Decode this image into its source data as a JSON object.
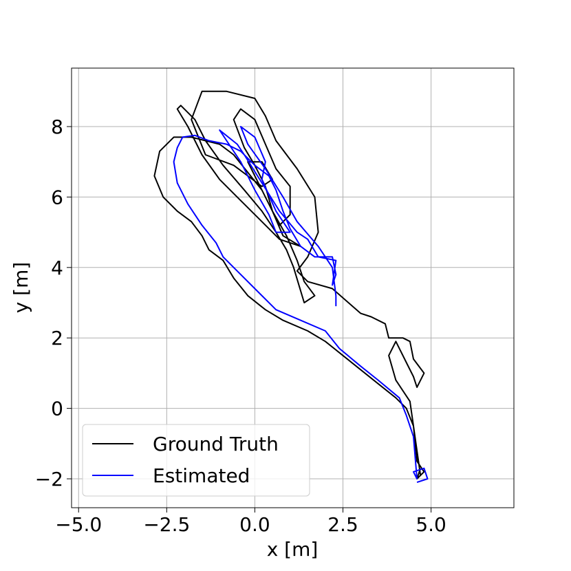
{
  "chart_data": {
    "type": "line",
    "xlabel": "x [m]",
    "ylabel": "y [m]",
    "xlim": [
      -5.2,
      7.35
    ],
    "ylim": [
      -2.82,
      9.66
    ],
    "xticks": [
      {
        "value": -5,
        "label": "−5.0"
      },
      {
        "value": -2.5,
        "label": "−2.5"
      },
      {
        "value": 0,
        "label": "0.0"
      },
      {
        "value": 2.5,
        "label": "2.5"
      },
      {
        "value": 5,
        "label": "5.0"
      }
    ],
    "yticks": [
      {
        "value": -2,
        "label": "−2"
      },
      0,
      2,
      4,
      6,
      8
    ],
    "grid": true,
    "legend": "lower left",
    "series": [
      {
        "name": "Ground Truth",
        "color": "#000000",
        "x": [
          4.7,
          4.6,
          4.5,
          4.3,
          4.0,
          3.5,
          3.0,
          2.5,
          2.0,
          1.5,
          0.8,
          0.3,
          -0.2,
          -0.6,
          -0.9,
          -1.3,
          -1.5,
          -1.8,
          -2.2,
          -2.6,
          -2.85,
          -2.7,
          -2.3,
          -1.8,
          -1.4,
          -1.0,
          -0.6,
          -0.2,
          0.2,
          0.5,
          0.9,
          1.2,
          1.4,
          1.7,
          1.4,
          1.25,
          1.1,
          0.9,
          0.6,
          0.2,
          -0.3,
          -0.9,
          -1.4,
          -1.7,
          -2.1,
          -2.2,
          -1.9,
          -1.5,
          -1.0,
          -0.5,
          0.2,
          0.7,
          1.3,
          0.8,
          0.5,
          0.3,
          0.0,
          -0.3,
          -0.6,
          -0.4,
          0.0,
          0.3,
          0.6,
          1.0,
          1.0,
          0.7,
          0.3,
          0.0,
          -0.2,
          0.2,
          0.5,
          0.2,
          -0.6,
          -1.4,
          -1.8,
          -1.5,
          -0.8,
          0.0,
          0.3,
          0.6,
          1.2,
          1.7,
          1.8,
          1.5,
          1.2,
          1.5,
          2.2,
          3.0,
          3.3,
          3.7,
          3.8,
          4.2,
          4.4,
          4.5,
          4.8,
          4.6,
          4.5,
          4.3,
          4.0,
          3.8,
          4.0,
          4.4,
          4.5,
          4.6,
          4.8,
          4.6,
          4.7
        ],
        "values": [
          -1.9,
          -1.2,
          -0.5,
          0.0,
          0.3,
          0.7,
          1.1,
          1.5,
          1.9,
          2.2,
          2.5,
          2.8,
          3.2,
          3.7,
          4.2,
          4.5,
          4.9,
          5.3,
          5.6,
          6.0,
          6.6,
          7.3,
          7.7,
          7.7,
          7.6,
          7.5,
          7.2,
          6.7,
          6.2,
          5.6,
          4.9,
          4.2,
          3.6,
          3.2,
          3.0,
          3.5,
          4.0,
          4.5,
          5.0,
          5.6,
          6.2,
          6.9,
          7.6,
          8.2,
          8.6,
          8.5,
          8.0,
          7.2,
          6.5,
          6.0,
          5.3,
          4.8,
          4.6,
          4.9,
          5.6,
          6.3,
          6.9,
          7.4,
          8.2,
          8.5,
          8.2,
          7.5,
          6.8,
          6.3,
          5.5,
          5.2,
          6.0,
          6.6,
          7.0,
          7.0,
          6.5,
          6.3,
          6.9,
          7.2,
          8.2,
          9.0,
          9.0,
          8.8,
          8.3,
          7.6,
          6.8,
          6.0,
          5.0,
          4.3,
          3.9,
          3.6,
          3.4,
          2.7,
          2.6,
          2.4,
          2.0,
          2.0,
          1.9,
          1.4,
          1.0,
          0.6,
          0.9,
          1.3,
          1.9,
          1.5,
          0.8,
          0.2,
          -0.5,
          -1.5,
          -1.8,
          -2.0,
          -1.7
        ]
      },
      {
        "name": "Estimated",
        "color": "#0000ff",
        "x": [
          4.6,
          4.9,
          4.8,
          4.5,
          4.6,
          4.5,
          4.3,
          4.1,
          3.5,
          3.0,
          2.4,
          2.0,
          1.3,
          0.6,
          0.0,
          -0.5,
          -0.9,
          -1.1,
          -1.5,
          -1.9,
          -2.2,
          -2.3,
          -2.2,
          -2.05,
          -1.7,
          -1.3,
          -0.8,
          -0.4,
          0.0,
          0.4,
          0.6,
          0.8,
          1.0,
          1.3,
          1.7,
          2.2,
          2.3,
          2.2,
          2.3,
          1.8,
          1.5,
          1.2,
          0.7,
          0.2,
          -0.3,
          -0.5,
          -1.0,
          -0.8,
          -0.4,
          0.0,
          0.4,
          0.6,
          1.0,
          0.6,
          0.2,
          0.3,
          0.0,
          -0.4,
          -0.2,
          0.3,
          0.8,
          1.2,
          1.8,
          2.2,
          2.3,
          2.3
        ],
        "values": [
          -2.1,
          -2.0,
          -1.7,
          -1.8,
          -2.0,
          -0.8,
          -0.2,
          0.3,
          0.8,
          1.2,
          1.7,
          2.2,
          2.5,
          2.8,
          3.4,
          3.9,
          4.3,
          4.7,
          5.2,
          5.8,
          6.4,
          7.0,
          7.4,
          7.7,
          7.75,
          7.6,
          7.5,
          7.3,
          6.9,
          6.6,
          6.2,
          5.6,
          5.1,
          4.6,
          4.3,
          4.3,
          3.8,
          3.5,
          4.2,
          4.3,
          4.8,
          5.0,
          5.6,
          6.4,
          7.2,
          7.5,
          7.9,
          7.6,
          7.0,
          6.2,
          5.5,
          5.0,
          5.0,
          5.6,
          6.5,
          7.0,
          7.7,
          8.0,
          7.5,
          6.8,
          6.0,
          5.3,
          4.6,
          4.0,
          3.2,
          2.9
        ]
      }
    ]
  }
}
